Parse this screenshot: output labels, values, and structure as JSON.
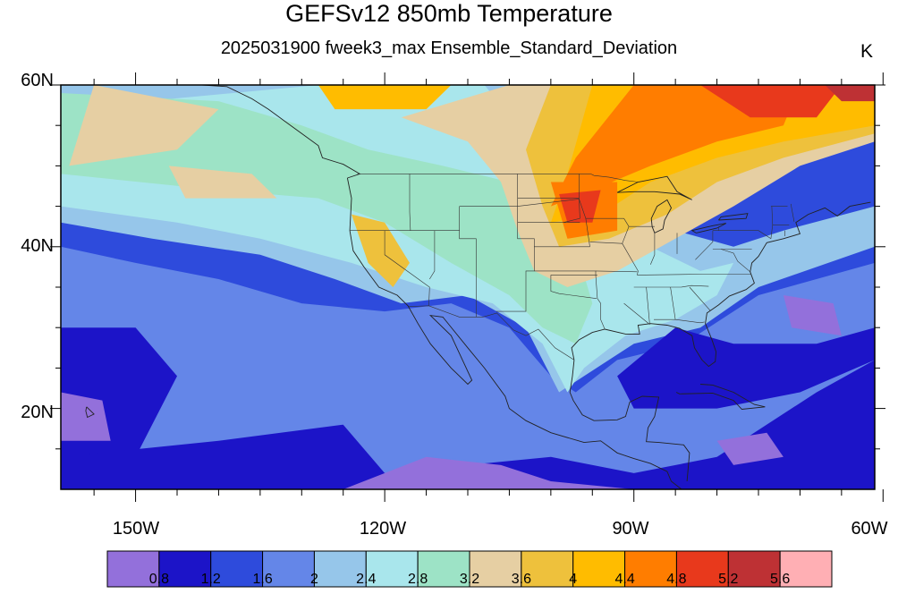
{
  "title": "GEFSv12 850mb Temperature",
  "subtitle": "2025031900 fweek3_max Ensemble_Standard_Deviation",
  "units": "K",
  "lat_labels": [
    "60N",
    "40N",
    "20N"
  ],
  "lon_labels": [
    "150W",
    "120W",
    "90W",
    "60W"
  ],
  "colorbar": {
    "colors": [
      "#9370DB",
      "#1C14C8",
      "#2E4BDC",
      "#6486E8",
      "#96C6EA",
      "#A9E6EC",
      "#9DE3C6",
      "#E6CFA3",
      "#EEC13C",
      "#FFBC00",
      "#FF7D00",
      "#E8391C",
      "#BE3134",
      "#FFAFB4"
    ],
    "labels": [
      "0.8",
      "1.2",
      "1.6",
      "2",
      "2.4",
      "2.8",
      "3.2",
      "3.6",
      "4",
      "4.4",
      "4.8",
      "5.2",
      "5.6"
    ]
  },
  "chart_data": {
    "type": "heatmap",
    "title": "GEFSv12 850mb Temperature",
    "subtitle": "2025031900 fweek3_max Ensemble_Standard_Deviation",
    "units": "K",
    "lon_range": [
      -159,
      -61
    ],
    "lat_range": [
      10,
      60
    ],
    "lon_ticks": [
      "150W",
      "120W",
      "90W",
      "60W"
    ],
    "lat_ticks": [
      "60N",
      "40N",
      "20N"
    ],
    "contour_levels": [
      0.8,
      1.2,
      1.6,
      2,
      2.4,
      2.8,
      3.2,
      3.6,
      4,
      4.4,
      4.8,
      5.2,
      5.6
    ],
    "grid": false
  }
}
